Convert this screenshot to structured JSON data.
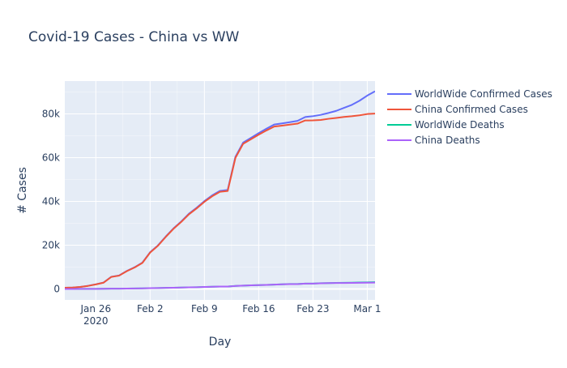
{
  "chart_data": {
    "type": "line",
    "title": "Covid-19 Cases - China vs WW",
    "xlabel": "Day",
    "ylabel": "# Cases",
    "x_start": "2020-01-22",
    "x_end": "2020-03-02",
    "xlim": [
      "2020-01-22",
      "2020-03-02"
    ],
    "ylim": [
      -5000,
      95000
    ],
    "x_ticks": [
      {
        "date": "2020-01-26",
        "label": "Jan 26",
        "sublabel": "2020"
      },
      {
        "date": "2020-02-02",
        "label": "Feb 2"
      },
      {
        "date": "2020-02-09",
        "label": "Feb 9"
      },
      {
        "date": "2020-02-16",
        "label": "Feb 16"
      },
      {
        "date": "2020-02-23",
        "label": "Feb 23"
      },
      {
        "date": "2020-03-01",
        "label": "Mar 1"
      }
    ],
    "y_ticks": [
      {
        "value": 0,
        "label": "0"
      },
      {
        "value": 20000,
        "label": "20k"
      },
      {
        "value": 40000,
        "label": "40k"
      },
      {
        "value": 60000,
        "label": "60k"
      },
      {
        "value": 80000,
        "label": "80k"
      }
    ],
    "grid": true,
    "legend_position": "right",
    "background_color": "#e5ecf6",
    "series": [
      {
        "name": "WorldWide Confirmed Cases",
        "color": "#636efa",
        "values": [
          555,
          654,
          941,
          1434,
          2118,
          2927,
          5578,
          6166,
          8234,
          9927,
          12038,
          16787,
          19881,
          23892,
          27635,
          30794,
          34391,
          37120,
          40150,
          42762,
          44802,
          45221,
          60368,
          66885,
          69030,
          71224,
          73258,
          75136,
          75639,
          76197,
          76819,
          78572,
          78958,
          79561,
          80406,
          81388,
          82746,
          84112,
          86011,
          88369,
          90306
        ]
      },
      {
        "name": "China Confirmed Cases",
        "color": "#ef553b",
        "values": [
          548,
          643,
          920,
          1406,
          2075,
          2877,
          5509,
          6087,
          8141,
          9802,
          11891,
          16630,
          19716,
          23707,
          27440,
          30587,
          34110,
          36814,
          39829,
          42354,
          44386,
          44759,
          59895,
          66358,
          68413,
          70513,
          72434,
          74211,
          74619,
          75077,
          75550,
          77001,
          77022,
          77241,
          77754,
          78166,
          78600,
          78928,
          79356,
          79932,
          80136
        ]
      },
      {
        "name": "WorldWide Deaths",
        "color": "#00cc96",
        "values": [
          17,
          18,
          26,
          42,
          56,
          82,
          131,
          133,
          171,
          213,
          259,
          362,
          426,
          492,
          564,
          634,
          719,
          806,
          906,
          1013,
          1113,
          1118,
          1371,
          1523,
          1666,
          1770,
          1868,
          2007,
          2122,
          2247,
          2251,
          2458,
          2469,
          2629,
          2708,
          2770,
          2814,
          2872,
          2941,
          2996,
          3085
        ]
      },
      {
        "name": "China Deaths",
        "color": "#ab63fa",
        "values": [
          17,
          18,
          26,
          42,
          56,
          82,
          131,
          133,
          171,
          213,
          259,
          361,
          425,
          490,
          562,
          632,
          717,
          804,
          904,
          1011,
          1111,
          1116,
          1368,
          1520,
          1662,
          1765,
          1863,
          2002,
          2114,
          2236,
          2236,
          2441,
          2443,
          2593,
          2663,
          2715,
          2744,
          2788,
          2835,
          2870,
          2912
        ]
      }
    ]
  }
}
